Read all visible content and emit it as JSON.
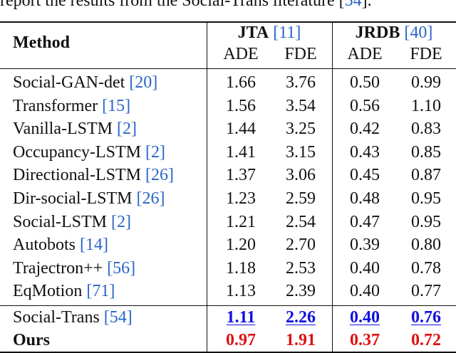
{
  "caption": {
    "before": "report the results from the Social-Trans literature [",
    "ref": "54",
    "after": "]."
  },
  "header": {
    "method": "Method",
    "group1": {
      "name": "JTA",
      "ref": "11"
    },
    "group2": {
      "name": "JRDB",
      "ref": "40"
    },
    "metrics": [
      "ADE",
      "FDE",
      "ADE",
      "FDE"
    ]
  },
  "rows": [
    {
      "name": "Social-GAN-det",
      "ref": "20",
      "values": [
        "1.66",
        "3.76",
        "0.50",
        "0.99"
      ]
    },
    {
      "name": "Transformer",
      "ref": "15",
      "values": [
        "1.56",
        "3.54",
        "0.56",
        "1.10"
      ]
    },
    {
      "name": "Vanilla-LSTM",
      "ref": "2",
      "values": [
        "1.44",
        "3.25",
        "0.42",
        "0.83"
      ]
    },
    {
      "name": "Occupancy-LSTM",
      "ref": "2",
      "values": [
        "1.41",
        "3.15",
        "0.43",
        "0.85"
      ]
    },
    {
      "name": "Directional-LSTM",
      "ref": "26",
      "values": [
        "1.37",
        "3.06",
        "0.45",
        "0.87"
      ]
    },
    {
      "name": "Dir-social-LSTM",
      "ref": "26",
      "values": [
        "1.23",
        "2.59",
        "0.48",
        "0.95"
      ]
    },
    {
      "name": "Social-LSTM",
      "ref": "2",
      "values": [
        "1.21",
        "2.54",
        "0.47",
        "0.95"
      ]
    },
    {
      "name": "Autobots",
      "ref": "14",
      "values": [
        "1.20",
        "2.70",
        "0.39",
        "0.80"
      ]
    },
    {
      "name": "Trajectron++",
      "ref": "56",
      "values": [
        "1.18",
        "2.53",
        "0.40",
        "0.78"
      ]
    },
    {
      "name": "EqMotion",
      "ref": "71",
      "values": [
        "1.13",
        "2.39",
        "0.40",
        "0.77"
      ]
    }
  ],
  "second_best": {
    "name": "Social-Trans",
    "ref": "54",
    "values": [
      "1.11",
      "2.26",
      "0.40",
      "0.76"
    ],
    "color": "#1010e0"
  },
  "best": {
    "name": "Ours",
    "values": [
      "0.97",
      "1.91",
      "0.37",
      "0.72"
    ],
    "color": "#e01010"
  },
  "colors": {
    "citation": "#2a64c8",
    "best": "#e01010",
    "second_best": "#1010e0"
  }
}
